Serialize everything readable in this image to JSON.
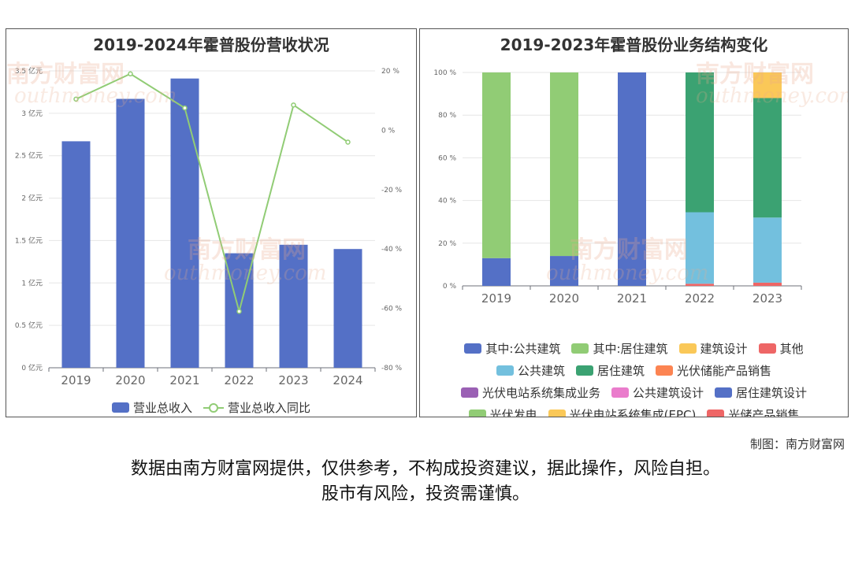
{
  "left_chart": {
    "title": "2019-2024年霍普股份营收状况",
    "legend": {
      "bar_label": "营业总收入",
      "line_label": "营业总收入同比"
    },
    "colors": {
      "bar": "#5470c6",
      "line": "#91cc75"
    },
    "y_ticks": [
      "0 亿元",
      "0.5 亿元",
      "1 亿元",
      "1.5 亿元",
      "2 亿元",
      "2.5 亿元",
      "3 亿元",
      "3.5 亿元"
    ],
    "y2_ticks": [
      "-80 %",
      "-60 %",
      "-40 %",
      "-20 %",
      "0 %",
      "20 %"
    ]
  },
  "right_chart": {
    "title": "2019-2023年霍普股份业务结构变化",
    "y_ticks": [
      "0 %",
      "20 %",
      "40 %",
      "60 %",
      "80 %",
      "100 %"
    ],
    "legend_rows": [
      [
        {
          "label": "其中:公共建筑",
          "color": "#5470c6"
        },
        {
          "label": "其中:居住建筑",
          "color": "#91cc75"
        },
        {
          "label": "建筑设计",
          "color": "#fac858"
        },
        {
          "label": "其他",
          "color": "#ee6666"
        }
      ],
      [
        {
          "label": "公共建筑",
          "color": "#73c0de"
        },
        {
          "label": "居住建筑",
          "color": "#3ba272"
        },
        {
          "label": "光伏储能产品销售",
          "color": "#fc8452"
        }
      ],
      [
        {
          "label": "光伏电站系统集成业务",
          "color": "#9a60b4"
        },
        {
          "label": "公共建筑设计",
          "color": "#ea7ccc"
        },
        {
          "label": "居住建筑设计",
          "color": "#5470c6"
        }
      ],
      [
        {
          "label": "光伏发电",
          "color": "#91cc75"
        },
        {
          "label": "光伏电站系统集成(EPC)",
          "color": "#fac858"
        },
        {
          "label": "光储产品销售",
          "color": "#ee6666"
        }
      ]
    ]
  },
  "watermark": {
    "cn": "南方财富网",
    "en": "outhmoney.com"
  },
  "credit": "制图：南方财富网",
  "disclaimer": {
    "line1": "数据由南方财富网提供，仅供参考，不构成投资建议，据此操作，风险自担。",
    "line2": "股市有风险，投资需谨慎。"
  },
  "chart_data": [
    {
      "type": "bar",
      "title": "2019-2024年霍普股份营收状况",
      "categories": [
        "2019",
        "2020",
        "2021",
        "2022",
        "2023",
        "2024"
      ],
      "series": [
        {
          "name": "营业总收入",
          "type": "bar",
          "axis": "left",
          "unit": "亿元",
          "values": [
            2.67,
            3.17,
            3.41,
            1.35,
            1.45,
            1.4
          ]
        },
        {
          "name": "营业总收入同比",
          "type": "line",
          "axis": "right",
          "unit": "%",
          "values": [
            10.5,
            19.0,
            7.5,
            -61.0,
            8.5,
            -4.0
          ]
        }
      ],
      "ylim": [
        0,
        3.5
      ],
      "y2lim": [
        -80,
        20
      ],
      "grid": true,
      "legend_position": "bottom"
    },
    {
      "type": "bar",
      "stacked": true,
      "title": "2019-2023年霍普股份业务结构变化",
      "categories": [
        "2019",
        "2020",
        "2021",
        "2022",
        "2023"
      ],
      "unit": "%",
      "series": [
        {
          "name": "其中:公共建筑",
          "values": [
            13,
            14,
            0,
            0,
            0
          ]
        },
        {
          "name": "其中:居住建筑",
          "values": [
            87,
            86,
            0,
            0,
            0
          ]
        },
        {
          "name": "居住建筑设计",
          "values": [
            0,
            0,
            100,
            0,
            0
          ]
        },
        {
          "name": "其他",
          "values": [
            0,
            0,
            0,
            1,
            1.5
          ]
        },
        {
          "name": "公共建筑",
          "values": [
            0,
            0,
            0,
            33.5,
            30.5
          ]
        },
        {
          "name": "居住建筑",
          "values": [
            0,
            0,
            0,
            65.5,
            56
          ]
        },
        {
          "name": "建筑设计",
          "values": [
            0,
            0,
            0,
            0,
            12
          ]
        }
      ],
      "ylim": [
        0,
        100
      ],
      "grid": true,
      "legend_position": "bottom"
    }
  ]
}
